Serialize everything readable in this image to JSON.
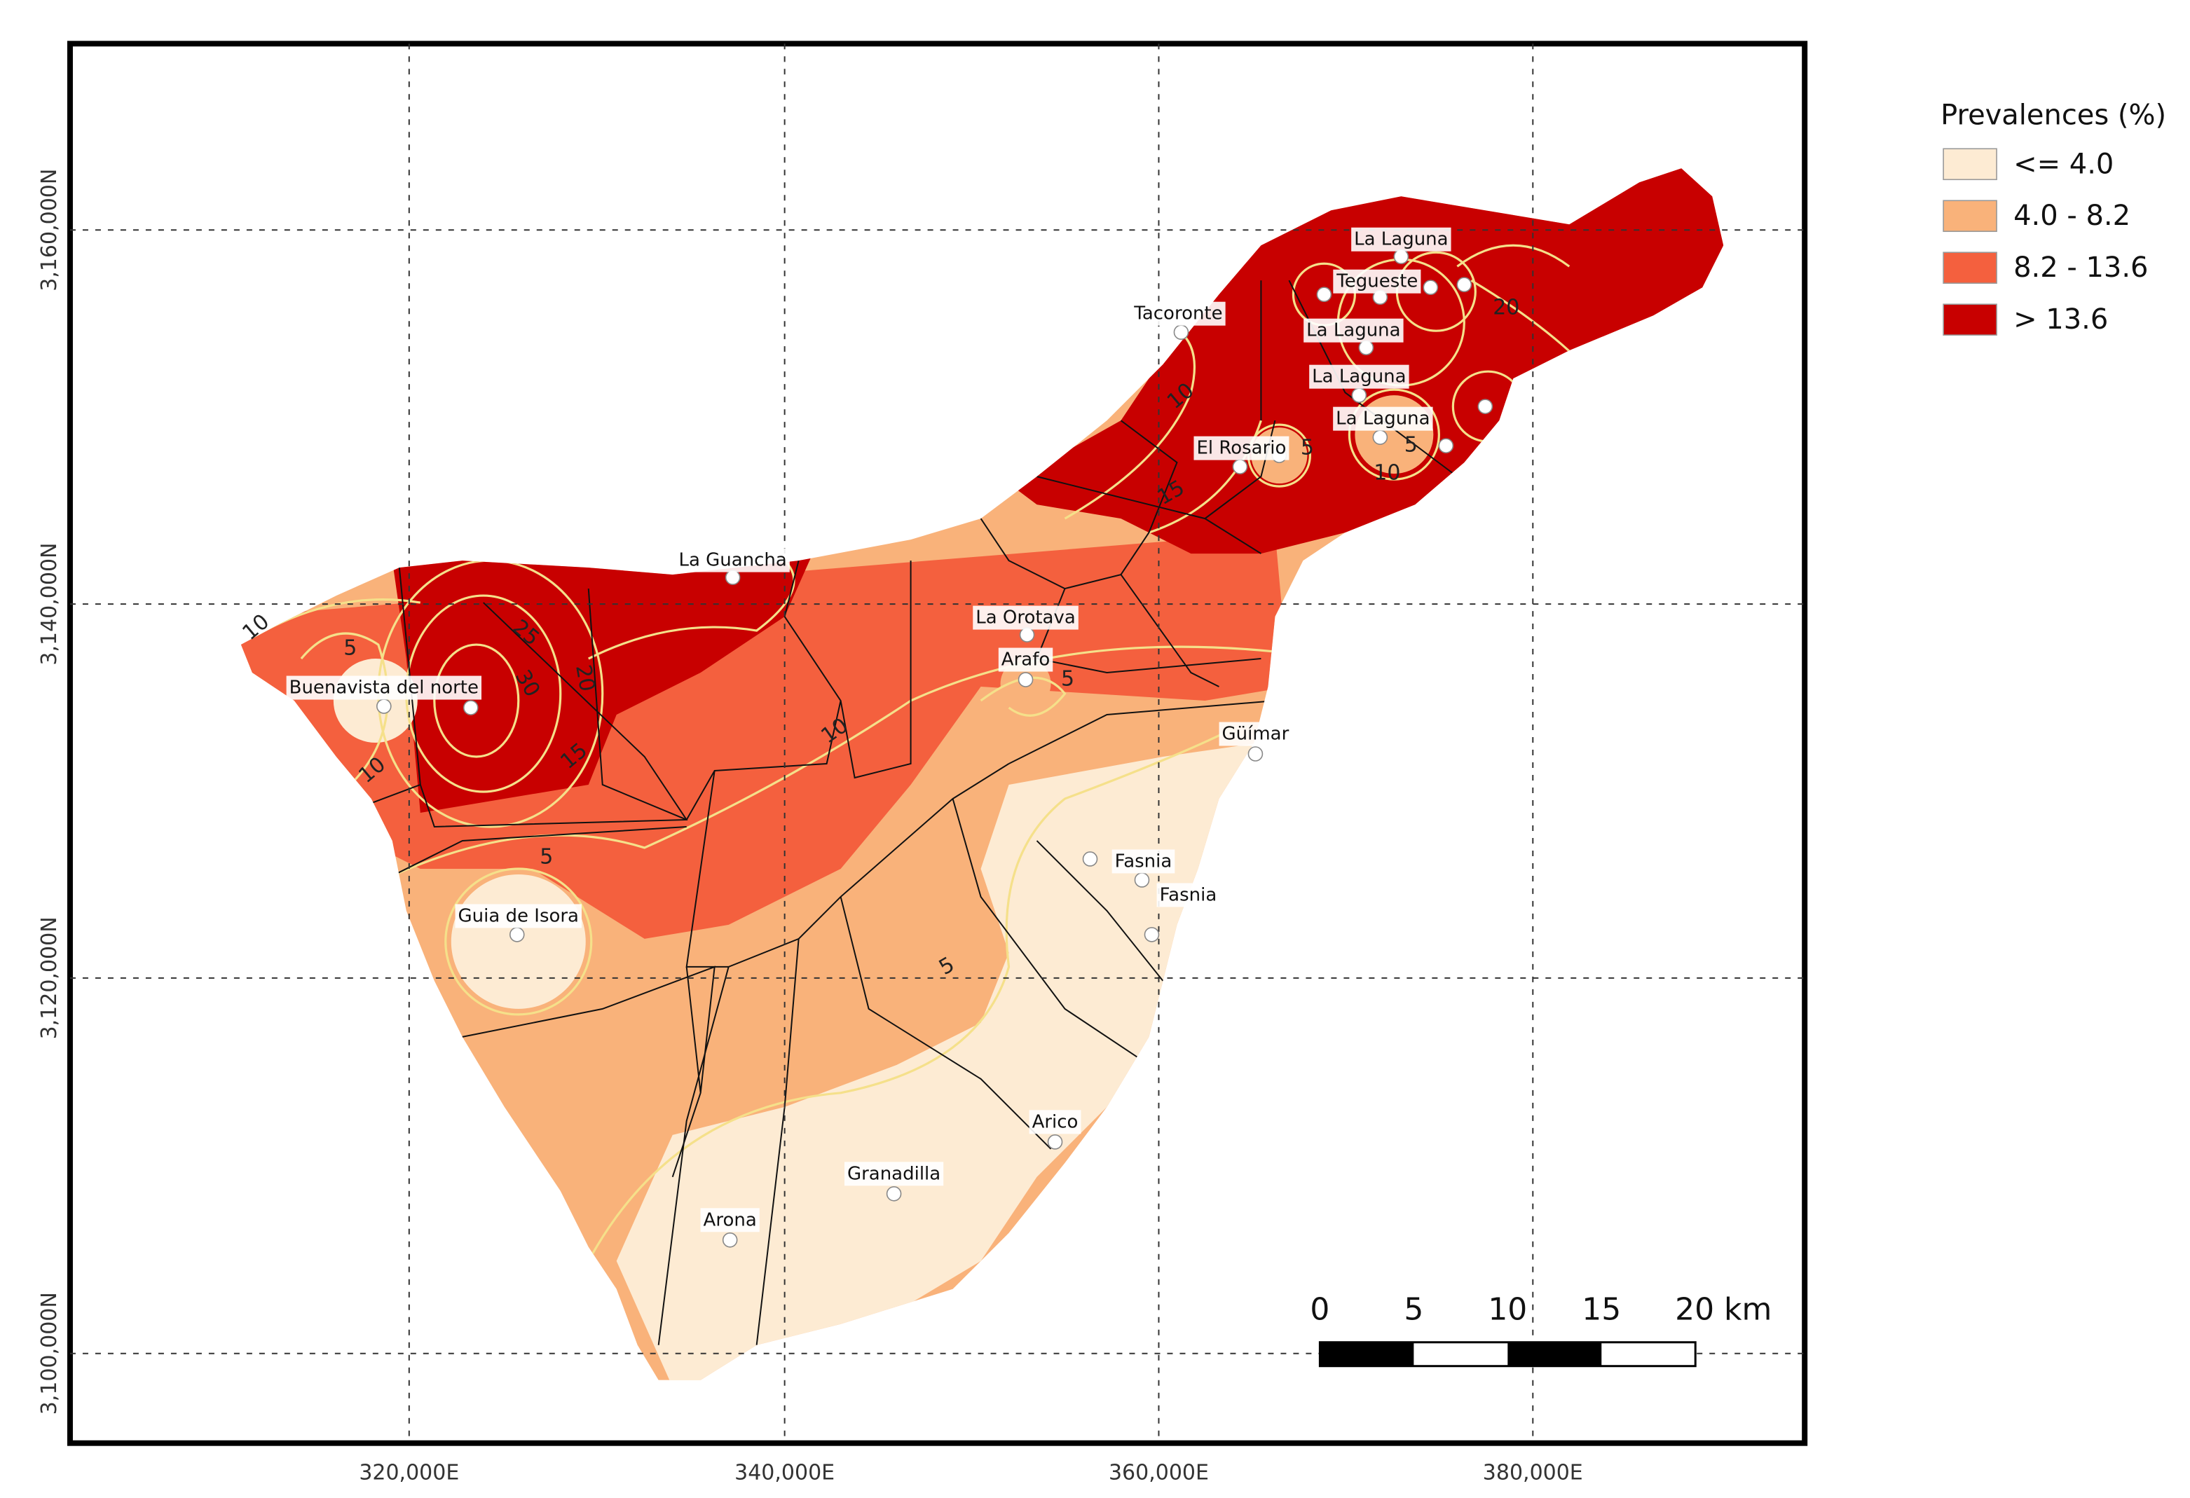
{
  "map": {
    "legend": {
      "title": "Prevalences (%)",
      "items": [
        {
          "label": "<= 4.0",
          "color": "#fdebd3"
        },
        {
          "label": "4.0 - 8.2",
          "color": "#f9b27a"
        },
        {
          "label": "8.2 - 13.6",
          "color": "#f4603e"
        },
        {
          "label": "> 13.6",
          "color": "#c80000"
        }
      ]
    },
    "x_labels": [
      "320,000E",
      "340,000E",
      "360,000E",
      "380,000E"
    ],
    "y_labels": [
      "3,160,000N",
      "3,140,000N",
      "3,120,000N",
      "3,100,000N"
    ],
    "places": [
      "La Laguna",
      "Tegueste",
      "La Laguna",
      "La Laguna",
      "La Laguna",
      "Tacoronte",
      "El Rosario",
      "La Guancha",
      "La Orotava",
      "Arafo",
      "Buenavista del norte",
      "Güímar",
      "Fasnia",
      "Fasnia",
      "Guia de Isora",
      "Arico",
      "Granadilla",
      "Arona"
    ],
    "contour_labels": [
      "10",
      "5",
      "25",
      "30",
      "20",
      "15",
      "10",
      "5",
      "10",
      "5",
      "5",
      "15",
      "10",
      "5",
      "10",
      "5",
      "20"
    ],
    "scale_bar": [
      "0",
      "5",
      "10",
      "15",
      "20 km"
    ]
  }
}
